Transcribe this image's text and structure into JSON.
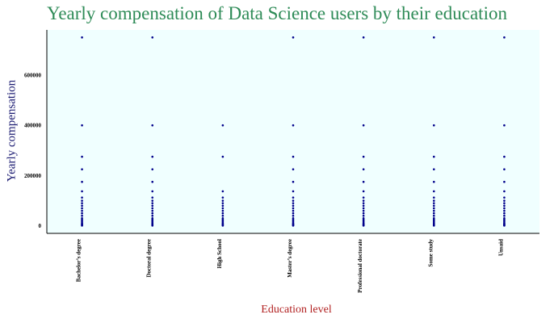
{
  "chart_data": {
    "type": "scatter",
    "title": "Yearly compensation of Data Science users by their education",
    "xlabel": "Education level",
    "ylabel": "Yearly compensation",
    "categories": [
      "Bachelor’s degree",
      "Doctoral degree",
      "High School",
      "Master’s degree",
      "Professional doctorate",
      "Some study",
      "Unsaid"
    ],
    "y_ticks": [
      0,
      200000,
      400000,
      600000
    ],
    "y_tick_labels": [
      "0",
      "200000",
      "400000",
      "600000"
    ],
    "ylim": [
      -30000,
      780000
    ],
    "grid": false,
    "background_color": "#f0ffff",
    "point_color": "#00008b",
    "title_color": "#2e8b57",
    "ylabel_color": "#191970",
    "xlabel_color": "#b22222",
    "series": [
      {
        "category": "Bachelor’s degree",
        "y": [
          750000,
          400000,
          275000,
          225000,
          175000,
          137500,
          112500,
          100000,
          90000,
          80000,
          70000,
          60000,
          50000,
          40000,
          30000,
          25000,
          20000,
          15000,
          10000,
          7500,
          5000,
          2500,
          1000
        ]
      },
      {
        "category": "Doctoral degree",
        "y": [
          750000,
          400000,
          275000,
          225000,
          175000,
          137500,
          112500,
          100000,
          90000,
          80000,
          70000,
          60000,
          50000,
          40000,
          30000,
          25000,
          20000,
          15000,
          10000,
          7500,
          5000,
          2500,
          1000
        ]
      },
      {
        "category": "High School",
        "y": [
          400000,
          275000,
          137500,
          112500,
          100000,
          90000,
          80000,
          70000,
          60000,
          50000,
          40000,
          30000,
          25000,
          20000,
          15000,
          10000,
          7500,
          5000,
          2500,
          1000
        ]
      },
      {
        "category": "Master’s degree",
        "y": [
          750000,
          400000,
          275000,
          225000,
          175000,
          137500,
          112500,
          100000,
          90000,
          80000,
          70000,
          60000,
          50000,
          40000,
          30000,
          25000,
          20000,
          15000,
          10000,
          7500,
          5000,
          2500,
          1000
        ]
      },
      {
        "category": "Professional doctorate",
        "y": [
          750000,
          400000,
          275000,
          225000,
          175000,
          137500,
          112500,
          100000,
          90000,
          80000,
          70000,
          60000,
          50000,
          40000,
          30000,
          25000,
          20000,
          15000,
          10000,
          7500,
          5000,
          2500,
          1000
        ]
      },
      {
        "category": "Some study",
        "y": [
          750000,
          400000,
          275000,
          225000,
          175000,
          137500,
          112500,
          100000,
          90000,
          80000,
          70000,
          60000,
          50000,
          40000,
          30000,
          25000,
          20000,
          15000,
          10000,
          7500,
          5000,
          2500,
          1000
        ]
      },
      {
        "category": "Unsaid",
        "y": [
          750000,
          400000,
          275000,
          225000,
          175000,
          137500,
          112500,
          100000,
          90000,
          80000,
          70000,
          60000,
          50000,
          40000,
          30000,
          25000,
          20000,
          15000,
          10000,
          7500,
          5000,
          2500,
          1000
        ]
      }
    ]
  }
}
